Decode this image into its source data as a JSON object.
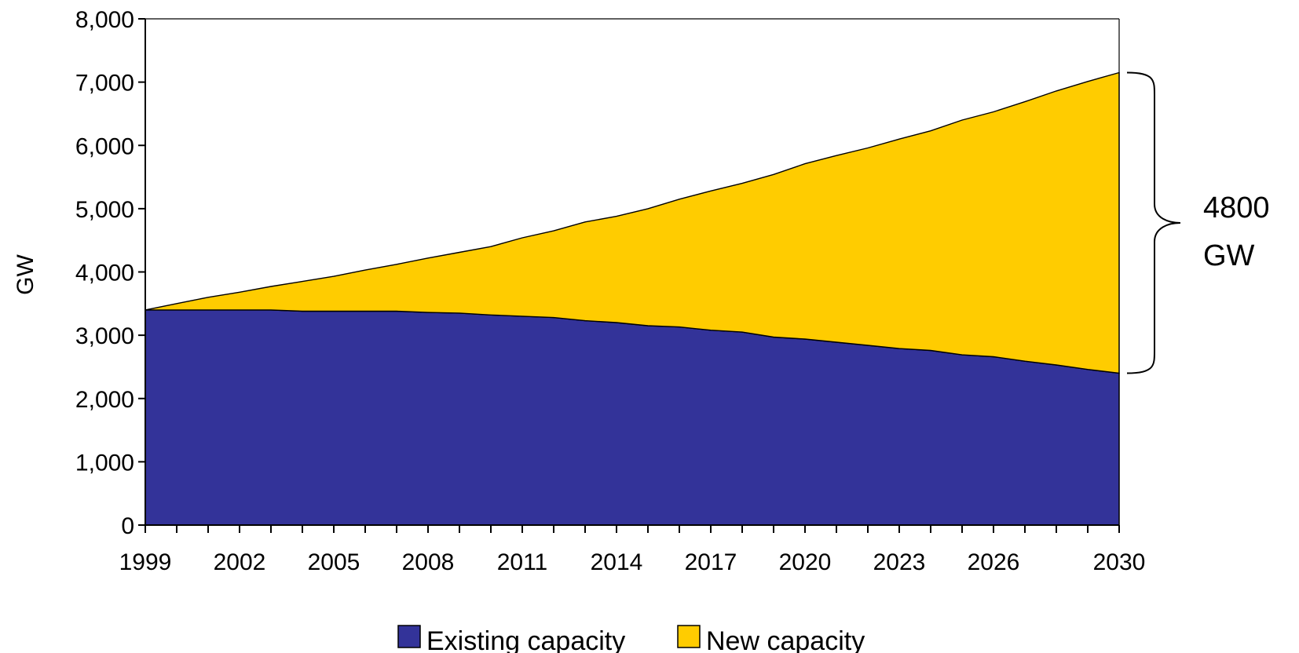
{
  "chart_data": {
    "type": "area",
    "stacked": true,
    "ylabel": "GW",
    "xlabel": "",
    "ylim": [
      0,
      8000
    ],
    "y_ticks": [
      "0",
      "1,000",
      "2,000",
      "3,000",
      "4,000",
      "5,000",
      "6,000",
      "7,000",
      "8,000"
    ],
    "y_tick_values": [
      0,
      1000,
      2000,
      3000,
      4000,
      5000,
      6000,
      7000,
      8000
    ],
    "x_tick_labels": [
      "1999",
      "2002",
      "2005",
      "2008",
      "2011",
      "2014",
      "2017",
      "2020",
      "2023",
      "2026",
      "2030"
    ],
    "x": [
      1999,
      2000,
      2001,
      2002,
      2003,
      2004,
      2005,
      2006,
      2007,
      2008,
      2009,
      2010,
      2011,
      2012,
      2013,
      2014,
      2015,
      2016,
      2017,
      2018,
      2019,
      2020,
      2021,
      2022,
      2023,
      2024,
      2025,
      2026,
      2027,
      2028,
      2029,
      2030
    ],
    "grid": false,
    "legend_position": "bottom",
    "series": [
      {
        "name": "Existing capacity",
        "color": "#333399",
        "values": [
          3400,
          3400,
          3400,
          3400,
          3400,
          3380,
          3380,
          3380,
          3380,
          3360,
          3350,
          3320,
          3300,
          3280,
          3230,
          3200,
          3150,
          3130,
          3080,
          3050,
          2970,
          2940,
          2890,
          2840,
          2790,
          2760,
          2690,
          2660,
          2590,
          2530,
          2460,
          2400
        ]
      },
      {
        "name": "New capacity",
        "color": "#ffcc00",
        "values": [
          0,
          100,
          200,
          280,
          370,
          470,
          550,
          650,
          740,
          860,
          960,
          1080,
          1240,
          1370,
          1560,
          1680,
          1850,
          2020,
          2200,
          2350,
          2570,
          2770,
          2950,
          3120,
          3310,
          3470,
          3710,
          3870,
          4100,
          4330,
          4550,
          4750
        ]
      }
    ],
    "annotation": {
      "line1": "4800",
      "line2": "GW"
    }
  }
}
